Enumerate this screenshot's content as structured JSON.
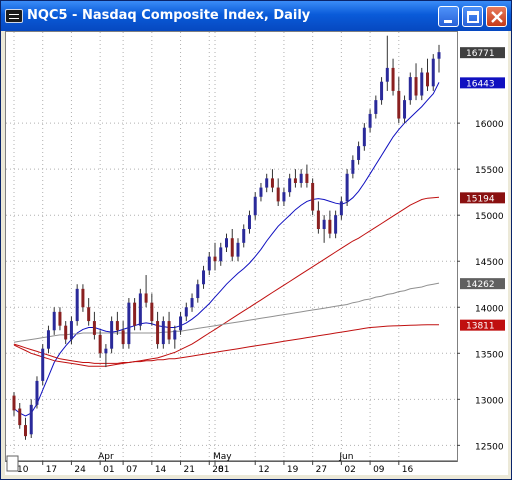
{
  "window": {
    "title": "NQC5 - Nasdaq Composite Index, Daily",
    "buttons": [
      "minimize",
      "maximize",
      "close"
    ]
  },
  "colors": {
    "titlebar": "#0a5bd9",
    "up_candle": "#2a2a9a",
    "down_candle": "#8a2020",
    "ma_short": "#1010c0",
    "ma_mid": "#c01010",
    "ma_long": "#909090",
    "ma_longest": "#c01010",
    "tag_last": "#404040",
    "tag_ma_short": "#1010c0",
    "tag_ma_mid": "#8a1010",
    "tag_ma_long": "#606060"
  },
  "chart_data": {
    "type": "candlestick",
    "symbol": "NQC5",
    "title": "NQC5 - Nasdaq Composite Index, Daily",
    "y_ticks": [
      12500,
      13000,
      13500,
      14000,
      14500,
      15000,
      15500,
      16000
    ],
    "y_tick_labels": [
      "12500",
      "13000",
      "13500",
      "14000",
      "14500",
      "15000",
      "15500",
      "16000"
    ],
    "ylim": [
      12330,
      16990
    ],
    "x_day_labels": [
      "10",
      "17",
      "24",
      "01",
      "07",
      "14",
      "21",
      "28",
      "01",
      "12",
      "19",
      "27",
      "02",
      "09",
      "16"
    ],
    "x_day_label_index": [
      0,
      5,
      10,
      15,
      19,
      24,
      29,
      34,
      35,
      42,
      47,
      52,
      57,
      62,
      67
    ],
    "x_month_labels": [
      "Apr",
      "May",
      "Jun"
    ],
    "x_month_label_index": [
      15,
      35,
      57
    ],
    "price_tags": [
      {
        "label": "16771",
        "value": 16771,
        "kind": "last"
      },
      {
        "label": "16443",
        "value": 16443,
        "kind": "ma_short"
      },
      {
        "label": "15194",
        "value": 15194,
        "kind": "ma_mid"
      },
      {
        "label": "14262",
        "value": 14262,
        "kind": "ma_long"
      },
      {
        "label": "13811",
        "value": 13811,
        "kind": "ma_longest"
      }
    ],
    "candles": [
      [
        13040,
        13080,
        12820,
        12880
      ],
      [
        12900,
        12960,
        12680,
        12720
      ],
      [
        12720,
        12800,
        12560,
        12600
      ],
      [
        12620,
        13000,
        12580,
        12940
      ],
      [
        12940,
        13250,
        12900,
        13200
      ],
      [
        13200,
        13600,
        13150,
        13550
      ],
      [
        13550,
        13800,
        13500,
        13750
      ],
      [
        13750,
        14000,
        13700,
        13950
      ],
      [
        13950,
        14000,
        13750,
        13800
      ],
      [
        13800,
        13850,
        13600,
        13650
      ],
      [
        13650,
        13900,
        13600,
        13850
      ],
      [
        13850,
        14250,
        13800,
        14200
      ],
      [
        14200,
        14250,
        13950,
        14000
      ],
      [
        14000,
        14100,
        13800,
        13850
      ],
      [
        13850,
        13950,
        13650,
        13700
      ],
      [
        13700,
        13750,
        13450,
        13500
      ],
      [
        13500,
        13600,
        13350,
        13550
      ],
      [
        13550,
        13900,
        13500,
        13850
      ],
      [
        13850,
        13950,
        13700,
        13750
      ],
      [
        13750,
        13850,
        13550,
        13600
      ],
      [
        13600,
        14100,
        13550,
        14050
      ],
      [
        14050,
        14100,
        13750,
        13800
      ],
      [
        13800,
        14200,
        13750,
        14150
      ],
      [
        14150,
        14350,
        14000,
        14050
      ],
      [
        14050,
        14150,
        13800,
        13850
      ],
      [
        13850,
        13950,
        13550,
        13600
      ],
      [
        13600,
        13900,
        13550,
        13850
      ],
      [
        13850,
        13950,
        13600,
        13650
      ],
      [
        13650,
        13800,
        13550,
        13750
      ],
      [
        13750,
        13950,
        13700,
        13900
      ],
      [
        13900,
        14050,
        13850,
        14000
      ],
      [
        14000,
        14150,
        13950,
        14100
      ],
      [
        14100,
        14300,
        14050,
        14250
      ],
      [
        14250,
        14450,
        14200,
        14400
      ],
      [
        14400,
        14600,
        14350,
        14550
      ],
      [
        14550,
        14700,
        14400,
        14500
      ],
      [
        14500,
        14700,
        14450,
        14650
      ],
      [
        14650,
        14800,
        14600,
        14750
      ],
      [
        14750,
        14850,
        14500,
        14550
      ],
      [
        14550,
        14750,
        14500,
        14700
      ],
      [
        14700,
        14900,
        14650,
        14850
      ],
      [
        14850,
        15050,
        14800,
        15000
      ],
      [
        15000,
        15250,
        14950,
        15200
      ],
      [
        15200,
        15350,
        15150,
        15300
      ],
      [
        15300,
        15450,
        15250,
        15400
      ],
      [
        15400,
        15500,
        15250,
        15300
      ],
      [
        15300,
        15400,
        15100,
        15150
      ],
      [
        15150,
        15300,
        15100,
        15250
      ],
      [
        15250,
        15450,
        15200,
        15400
      ],
      [
        15400,
        15500,
        15300,
        15350
      ],
      [
        15350,
        15500,
        15300,
        15450
      ],
      [
        15450,
        15550,
        15300,
        15350
      ],
      [
        15350,
        15400,
        15000,
        15050
      ],
      [
        15050,
        15150,
        14800,
        14850
      ],
      [
        14850,
        15000,
        14700,
        14950
      ],
      [
        14950,
        15050,
        14750,
        14800
      ],
      [
        14800,
        15050,
        14750,
        15000
      ],
      [
        15000,
        15200,
        14950,
        15150
      ],
      [
        15150,
        15500,
        15100,
        15450
      ],
      [
        15450,
        15650,
        15400,
        15600
      ],
      [
        15600,
        15800,
        15550,
        15750
      ],
      [
        15750,
        16000,
        15700,
        15950
      ],
      [
        15950,
        16150,
        15900,
        16100
      ],
      [
        16100,
        16300,
        16050,
        16250
      ],
      [
        16250,
        16500,
        16200,
        16450
      ],
      [
        16450,
        16950,
        16350,
        16600
      ],
      [
        16600,
        16700,
        16300,
        16350
      ],
      [
        16350,
        16500,
        16000,
        16050
      ],
      [
        16050,
        16300,
        16000,
        16250
      ],
      [
        16250,
        16550,
        16200,
        16500
      ],
      [
        16500,
        16650,
        16250,
        16300
      ],
      [
        16300,
        16600,
        16250,
        16550
      ],
      [
        16550,
        16700,
        16350,
        16400
      ],
      [
        16400,
        16750,
        16350,
        16700
      ],
      [
        16700,
        16850,
        16550,
        16771
      ]
    ],
    "series": [
      {
        "values": [
          12900,
          12850,
          12820,
          12850,
          12950,
          13100,
          13250,
          13400,
          13500,
          13580,
          13650,
          13720,
          13760,
          13780,
          13780,
          13760,
          13740,
          13730,
          13740,
          13760,
          13780,
          13800,
          13820,
          13830,
          13820,
          13800,
          13790,
          13780,
          13780,
          13800,
          13830,
          13870,
          13920,
          13980,
          14040,
          14110,
          14180,
          14250,
          14310,
          14370,
          14420,
          14480,
          14550,
          14630,
          14720,
          14800,
          14880,
          14940,
          15000,
          15060,
          15110,
          15150,
          15170,
          15180,
          15170,
          15150,
          15130,
          15120,
          15140,
          15190,
          15260,
          15350,
          15450,
          15550,
          15650,
          15750,
          15850,
          15930,
          16000,
          16060,
          16120,
          16180,
          16250,
          16320,
          16443
        ]
      },
      {
        "values": [
          13590,
          13560,
          13530,
          13500,
          13480,
          13460,
          13440,
          13420,
          13410,
          13400,
          13390,
          13380,
          13370,
          13360,
          13360,
          13360,
          13360,
          13370,
          13380,
          13390,
          13400,
          13410,
          13420,
          13430,
          13440,
          13450,
          13470,
          13490,
          13510,
          13540,
          13570,
          13600,
          13640,
          13680,
          13720,
          13760,
          13800,
          13840,
          13880,
          13920,
          13960,
          14000,
          14040,
          14080,
          14120,
          14160,
          14200,
          14240,
          14280,
          14320,
          14360,
          14400,
          14440,
          14480,
          14520,
          14560,
          14600,
          14640,
          14680,
          14720,
          14750,
          14790,
          14830,
          14870,
          14910,
          14950,
          14990,
          15030,
          15070,
          15110,
          15140,
          15170,
          15185,
          15190,
          15194
        ]
      },
      {
        "values": [
          13620,
          13630,
          13640,
          13650,
          13660,
          13670,
          13680,
          13690,
          13700,
          13700,
          13710,
          13710,
          13720,
          13720,
          13720,
          13720,
          13720,
          13720,
          13720,
          13720,
          13720,
          13720,
          13720,
          13720,
          13720,
          13720,
          13730,
          13730,
          13740,
          13740,
          13750,
          13760,
          13770,
          13780,
          13790,
          13800,
          13810,
          13820,
          13830,
          13840,
          13850,
          13860,
          13870,
          13880,
          13890,
          13900,
          13910,
          13920,
          13930,
          13940,
          13950,
          13960,
          13970,
          13980,
          13990,
          14000,
          14010,
          14020,
          14030,
          14050,
          14060,
          14080,
          14090,
          14110,
          14120,
          14140,
          14150,
          14170,
          14180,
          14200,
          14210,
          14220,
          14240,
          14250,
          14262
        ]
      },
      {
        "values": [
          13600,
          13580,
          13560,
          13540,
          13520,
          13500,
          13480,
          13460,
          13440,
          13430,
          13420,
          13410,
          13400,
          13400,
          13390,
          13390,
          13390,
          13390,
          13390,
          13400,
          13400,
          13410,
          13410,
          13420,
          13420,
          13430,
          13430,
          13440,
          13440,
          13450,
          13460,
          13470,
          13480,
          13490,
          13500,
          13510,
          13520,
          13530,
          13540,
          13550,
          13560,
          13570,
          13580,
          13590,
          13600,
          13610,
          13620,
          13630,
          13640,
          13650,
          13660,
          13670,
          13680,
          13690,
          13700,
          13710,
          13720,
          13730,
          13740,
          13750,
          13760,
          13770,
          13780,
          13785,
          13790,
          13795,
          13798,
          13800,
          13802,
          13804,
          13806,
          13808,
          13809,
          13810,
          13811
        ]
      }
    ]
  }
}
